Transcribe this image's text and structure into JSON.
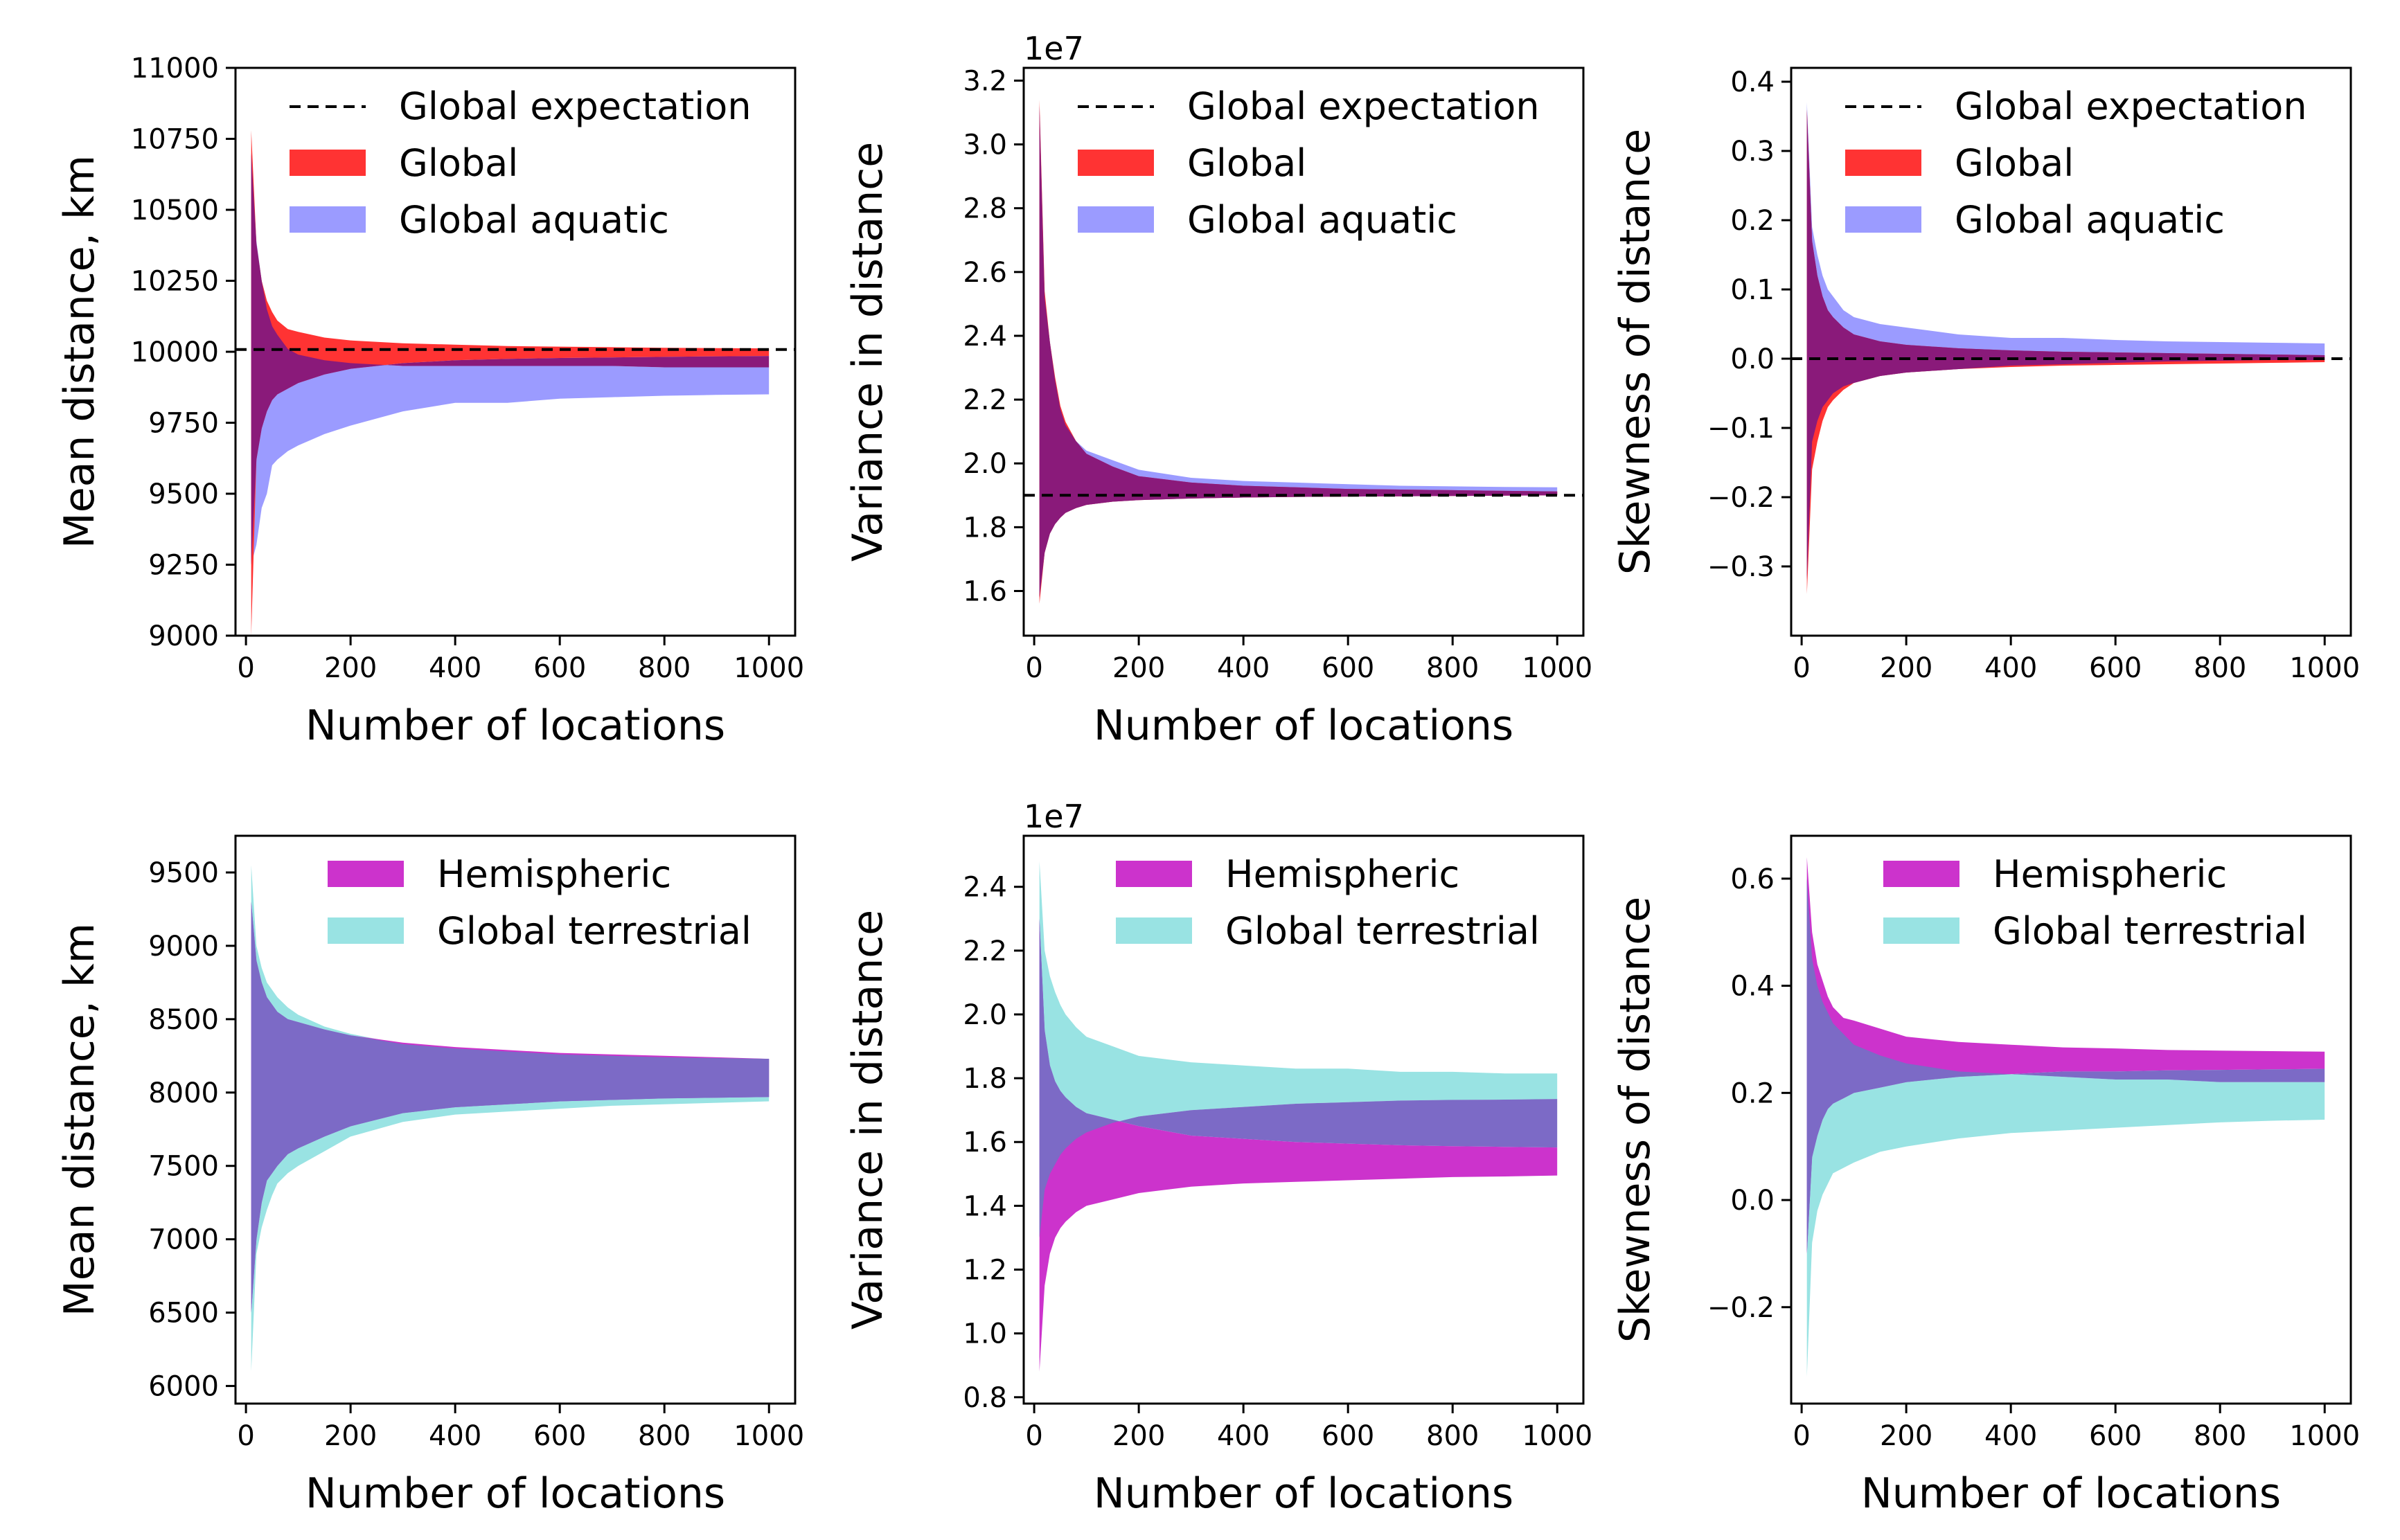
{
  "chart_data": [
    {
      "type": "area",
      "xlabel": "Number of locations",
      "ylabel": "Mean distance, km",
      "xlim": [
        -20,
        1050
      ],
      "ylim": [
        9000,
        11000
      ],
      "xticks": [
        0,
        200,
        400,
        600,
        800,
        1000
      ],
      "yticks": [
        9000,
        9250,
        9500,
        9750,
        10000,
        10250,
        10500,
        10750,
        11000
      ],
      "ytick_labels": [
        "9000",
        "9250",
        "9500",
        "9750",
        "10000",
        "10250",
        "10500",
        "10750",
        "11000"
      ],
      "legend_position": "top-right",
      "offset_text": "",
      "reference_line": {
        "name": "Global expectation",
        "y": 10008
      },
      "series": [
        {
          "name": "Global aquatic",
          "color": "#9b9bff",
          "x": [
            10,
            20,
            30,
            40,
            50,
            60,
            80,
            100,
            150,
            200,
            300,
            400,
            500,
            600,
            700,
            800,
            900,
            1000
          ],
          "upper": [
            10700,
            10390,
            10250,
            10150,
            10090,
            10060,
            10010,
            9990,
            9970,
            9960,
            9950,
            9950,
            9950,
            9950,
            9950,
            9945,
            9945,
            9945
          ],
          "lower": [
            9250,
            9320,
            9450,
            9500,
            9600,
            9620,
            9650,
            9670,
            9710,
            9740,
            9790,
            9820,
            9820,
            9835,
            9840,
            9845,
            9848,
            9850
          ]
        },
        {
          "name": "Global",
          "color": "#ff3333",
          "x": [
            10,
            20,
            30,
            40,
            50,
            60,
            80,
            100,
            150,
            200,
            300,
            400,
            500,
            600,
            700,
            800,
            900,
            1000
          ],
          "upper": [
            10780,
            10380,
            10250,
            10180,
            10140,
            10110,
            10080,
            10070,
            10050,
            10040,
            10030,
            10025,
            10020,
            10018,
            10016,
            10014,
            10013,
            10012
          ],
          "lower": [
            9000,
            9620,
            9730,
            9790,
            9830,
            9850,
            9870,
            9890,
            9920,
            9940,
            9960,
            9970,
            9975,
            9978,
            9980,
            9982,
            9984,
            9985
          ]
        }
      ]
    },
    {
      "type": "area",
      "xlabel": "Number of locations",
      "ylabel": "Variance in distance",
      "xlim": [
        -20,
        1050
      ],
      "ylim": [
        1.46,
        3.24
      ],
      "xticks": [
        0,
        200,
        400,
        600,
        800,
        1000
      ],
      "yticks": [
        1.6,
        1.8,
        2.0,
        2.2,
        2.4,
        2.6,
        2.8,
        3.0,
        3.2
      ],
      "ytick_labels": [
        "1.6",
        "1.8",
        "2.0",
        "2.2",
        "2.4",
        "2.6",
        "2.8",
        "3.0",
        "3.2"
      ],
      "legend_position": "top-right",
      "offset_text": "1e7",
      "reference_line": {
        "name": "Global expectation",
        "y": 1.9
      },
      "series": [
        {
          "name": "Global aquatic",
          "color": "#9b9bff",
          "x": [
            10,
            20,
            30,
            40,
            50,
            60,
            80,
            100,
            150,
            200,
            300,
            400,
            500,
            600,
            700,
            800,
            900,
            1000
          ],
          "upper": [
            3.12,
            2.52,
            2.38,
            2.26,
            2.17,
            2.12,
            2.07,
            2.04,
            2.01,
            1.98,
            1.955,
            1.945,
            1.94,
            1.935,
            1.93,
            1.928,
            1.926,
            1.925
          ],
          "lower": [
            1.58,
            1.72,
            1.78,
            1.81,
            1.83,
            1.845,
            1.86,
            1.87,
            1.88,
            1.885,
            1.89,
            1.893,
            1.895,
            1.896,
            1.897,
            1.898,
            1.899,
            1.9
          ]
        },
        {
          "name": "Global",
          "color": "#ff3333",
          "x": [
            10,
            20,
            30,
            40,
            50,
            60,
            80,
            100,
            150,
            200,
            300,
            400,
            500,
            600,
            700,
            800,
            900,
            1000
          ],
          "upper": [
            3.14,
            2.54,
            2.38,
            2.27,
            2.18,
            2.13,
            2.07,
            2.03,
            1.99,
            1.96,
            1.94,
            1.93,
            1.925,
            1.92,
            1.918,
            1.916,
            1.914,
            1.912
          ],
          "lower": [
            1.56,
            1.72,
            1.78,
            1.81,
            1.83,
            1.845,
            1.86,
            1.87,
            1.88,
            1.885,
            1.89,
            1.893,
            1.895,
            1.896,
            1.897,
            1.898,
            1.899,
            1.9
          ]
        }
      ]
    },
    {
      "type": "area",
      "xlabel": "",
      "ylabel": "Skewness of distance",
      "xlim": [
        -20,
        1050
      ],
      "ylim": [
        -0.4,
        0.42
      ],
      "xticks": [
        0,
        200,
        400,
        600,
        800,
        1000
      ],
      "yticks": [
        -0.3,
        -0.2,
        -0.1,
        0.0,
        0.1,
        0.2,
        0.3,
        0.4
      ],
      "ytick_labels": [
        "−0.3",
        "−0.2",
        "−0.1",
        "0.0",
        "0.1",
        "0.2",
        "0.3",
        "0.4"
      ],
      "legend_position": "top-right",
      "offset_text": "",
      "reference_line": {
        "name": "Global expectation",
        "y": 0.0
      },
      "series": [
        {
          "name": "Global aquatic",
          "color": "#9b9bff",
          "x": [
            10,
            20,
            30,
            40,
            50,
            60,
            80,
            100,
            150,
            200,
            300,
            400,
            500,
            600,
            700,
            800,
            900,
            1000
          ],
          "upper": [
            0.37,
            0.19,
            0.15,
            0.12,
            0.1,
            0.09,
            0.07,
            0.06,
            0.05,
            0.045,
            0.035,
            0.03,
            0.03,
            0.027,
            0.025,
            0.024,
            0.023,
            0.022
          ],
          "lower": [
            -0.32,
            -0.12,
            -0.09,
            -0.07,
            -0.06,
            -0.05,
            -0.04,
            -0.035,
            -0.025,
            -0.02,
            -0.015,
            -0.01,
            -0.008,
            -0.006,
            -0.004,
            -0.003,
            -0.002,
            -0.002
          ]
        },
        {
          "name": "Global",
          "color": "#ff3333",
          "x": [
            10,
            20,
            30,
            40,
            50,
            60,
            80,
            100,
            150,
            200,
            300,
            400,
            500,
            600,
            700,
            800,
            900,
            1000
          ],
          "upper": [
            0.36,
            0.17,
            0.12,
            0.09,
            0.07,
            0.06,
            0.045,
            0.035,
            0.025,
            0.02,
            0.015,
            0.012,
            0.01,
            0.009,
            0.008,
            0.007,
            0.006,
            0.005
          ],
          "lower": [
            -0.34,
            -0.16,
            -0.12,
            -0.09,
            -0.07,
            -0.06,
            -0.045,
            -0.035,
            -0.025,
            -0.02,
            -0.015,
            -0.012,
            -0.01,
            -0.009,
            -0.008,
            -0.007,
            -0.006,
            -0.005
          ]
        }
      ]
    },
    {
      "type": "area",
      "xlabel": "Number of locations",
      "ylabel": "Mean distance, km",
      "xlim": [
        -20,
        1050
      ],
      "ylim": [
        5880,
        9750
      ],
      "xticks": [
        0,
        200,
        400,
        600,
        800,
        1000
      ],
      "yticks": [
        6000,
        6500,
        7000,
        7500,
        8000,
        8500,
        9000,
        9500
      ],
      "ytick_labels": [
        "6000",
        "6500",
        "7000",
        "7500",
        "8000",
        "8500",
        "9000",
        "9500"
      ],
      "legend_position": "top-right",
      "offset_text": "",
      "series": [
        {
          "name": "Global terrestrial",
          "color": "#99e3e3",
          "x": [
            10,
            20,
            30,
            40,
            50,
            60,
            80,
            100,
            150,
            200,
            300,
            400,
            500,
            600,
            700,
            800,
            900,
            1000
          ],
          "upper": [
            9550,
            9000,
            8850,
            8750,
            8700,
            8650,
            8580,
            8530,
            8450,
            8400,
            8330,
            8300,
            8280,
            8260,
            8250,
            8240,
            8235,
            8230
          ],
          "lower": [
            6100,
            6900,
            7080,
            7200,
            7300,
            7380,
            7450,
            7500,
            7600,
            7700,
            7800,
            7850,
            7870,
            7890,
            7910,
            7920,
            7930,
            7940
          ]
        },
        {
          "name": "Hemispheric",
          "color": "#cc33cc",
          "x": [
            10,
            20,
            30,
            40,
            50,
            60,
            80,
            100,
            150,
            200,
            300,
            400,
            500,
            600,
            700,
            800,
            900,
            1000
          ],
          "upper": [
            9300,
            8900,
            8750,
            8650,
            8600,
            8550,
            8500,
            8480,
            8430,
            8390,
            8340,
            8310,
            8290,
            8270,
            8260,
            8250,
            8240,
            8230
          ],
          "lower": [
            6500,
            7000,
            7250,
            7400,
            7450,
            7500,
            7580,
            7620,
            7700,
            7770,
            7860,
            7900,
            7920,
            7940,
            7950,
            7960,
            7965,
            7970
          ]
        }
      ]
    },
    {
      "type": "area",
      "xlabel": "Number of locations",
      "ylabel": "Variance in distance",
      "xlim": [
        -20,
        1050
      ],
      "ylim": [
        0.78,
        2.56
      ],
      "xticks": [
        0,
        200,
        400,
        600,
        800,
        1000
      ],
      "yticks": [
        0.8,
        1.0,
        1.2,
        1.4,
        1.6,
        1.8,
        2.0,
        2.2,
        2.4
      ],
      "ytick_labels": [
        "0.8",
        "1.0",
        "1.2",
        "1.4",
        "1.6",
        "1.8",
        "2.0",
        "2.2",
        "2.4"
      ],
      "legend_position": "top-right",
      "offset_text": "1e7",
      "series": [
        {
          "name": "Global terrestrial",
          "color": "#99e3e3",
          "x": [
            10,
            20,
            30,
            40,
            50,
            60,
            80,
            100,
            150,
            200,
            300,
            400,
            500,
            600,
            700,
            800,
            900,
            1000
          ],
          "upper": [
            2.48,
            2.2,
            2.12,
            2.07,
            2.03,
            2.0,
            1.96,
            1.93,
            1.9,
            1.87,
            1.85,
            1.84,
            1.83,
            1.83,
            1.82,
            1.82,
            1.815,
            1.815
          ],
          "lower": [
            1.3,
            1.45,
            1.5,
            1.53,
            1.56,
            1.58,
            1.61,
            1.63,
            1.66,
            1.68,
            1.7,
            1.71,
            1.72,
            1.725,
            1.73,
            1.732,
            1.733,
            1.735
          ]
        },
        {
          "name": "Hemispheric",
          "color": "#cc33cc",
          "x": [
            10,
            20,
            30,
            40,
            50,
            60,
            80,
            100,
            150,
            200,
            300,
            400,
            500,
            600,
            700,
            800,
            900,
            1000
          ],
          "upper": [
            2.3,
            1.95,
            1.84,
            1.79,
            1.76,
            1.74,
            1.71,
            1.69,
            1.67,
            1.65,
            1.62,
            1.61,
            1.6,
            1.595,
            1.59,
            1.587,
            1.585,
            1.583
          ],
          "lower": [
            0.88,
            1.15,
            1.25,
            1.3,
            1.33,
            1.35,
            1.38,
            1.4,
            1.42,
            1.44,
            1.46,
            1.47,
            1.475,
            1.48,
            1.485,
            1.49,
            1.492,
            1.495
          ]
        }
      ]
    },
    {
      "type": "area",
      "xlabel": "Number of locations",
      "ylabel": "Skewness of distance",
      "xlim": [
        -20,
        1050
      ],
      "ylim": [
        -0.38,
        0.68
      ],
      "xticks": [
        0,
        200,
        400,
        600,
        800,
        1000
      ],
      "yticks": [
        -0.2,
        0.0,
        0.2,
        0.4,
        0.6
      ],
      "ytick_labels": [
        "−0.2",
        "0.0",
        "0.2",
        "0.4",
        "0.6"
      ],
      "legend_position": "top-right",
      "offset_text": "",
      "series": [
        {
          "name": "Global terrestrial",
          "color": "#99e3e3",
          "x": [
            10,
            20,
            30,
            40,
            50,
            60,
            80,
            100,
            150,
            200,
            300,
            400,
            500,
            600,
            700,
            800,
            900,
            1000
          ],
          "upper": [
            0.6,
            0.45,
            0.4,
            0.37,
            0.35,
            0.33,
            0.31,
            0.29,
            0.27,
            0.255,
            0.24,
            0.235,
            0.23,
            0.225,
            0.225,
            0.22,
            0.22,
            0.22
          ],
          "lower": [
            -0.33,
            -0.08,
            -0.02,
            0.01,
            0.03,
            0.05,
            0.06,
            0.07,
            0.09,
            0.1,
            0.115,
            0.125,
            0.13,
            0.135,
            0.14,
            0.145,
            0.148,
            0.15
          ]
        },
        {
          "name": "Hemispheric",
          "color": "#cc33cc",
          "x": [
            10,
            20,
            30,
            40,
            50,
            60,
            80,
            100,
            150,
            200,
            300,
            400,
            500,
            600,
            700,
            800,
            900,
            1000
          ],
          "upper": [
            0.64,
            0.5,
            0.44,
            0.41,
            0.38,
            0.36,
            0.34,
            0.335,
            0.32,
            0.305,
            0.295,
            0.29,
            0.285,
            0.283,
            0.28,
            0.279,
            0.278,
            0.277
          ],
          "lower": [
            -0.1,
            0.08,
            0.12,
            0.15,
            0.17,
            0.18,
            0.19,
            0.2,
            0.21,
            0.22,
            0.23,
            0.235,
            0.24,
            0.24,
            0.242,
            0.243,
            0.244,
            0.245
          ]
        }
      ]
    }
  ]
}
